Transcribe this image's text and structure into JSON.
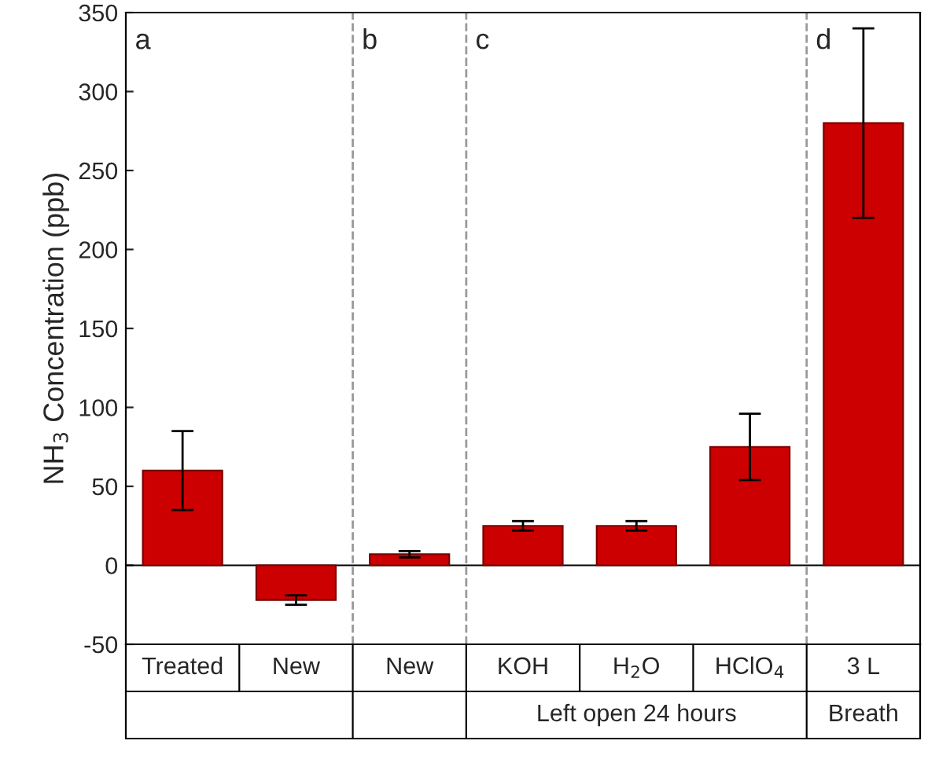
{
  "chart_data": {
    "type": "bar",
    "ylabel": "NH$_{3}$ Concentration (ppb)",
    "categories": [
      "Treated",
      "New",
      "New",
      "KOH",
      "H$_{2}$O",
      "HClO$_{4}$",
      "3 L"
    ],
    "values": [
      60,
      -22,
      7,
      25,
      25,
      75,
      280
    ],
    "errors": [
      25,
      3,
      2,
      3,
      3,
      21,
      60
    ],
    "color": "#cc0000",
    "ylim": [
      -50,
      350
    ],
    "yticks": [
      -50,
      0,
      50,
      100,
      150,
      200,
      250,
      300,
      350
    ],
    "annotations": [
      "a",
      "b",
      "c",
      "d",
      "Left open 24 hours",
      "Breath"
    ],
    "grid": false
  }
}
